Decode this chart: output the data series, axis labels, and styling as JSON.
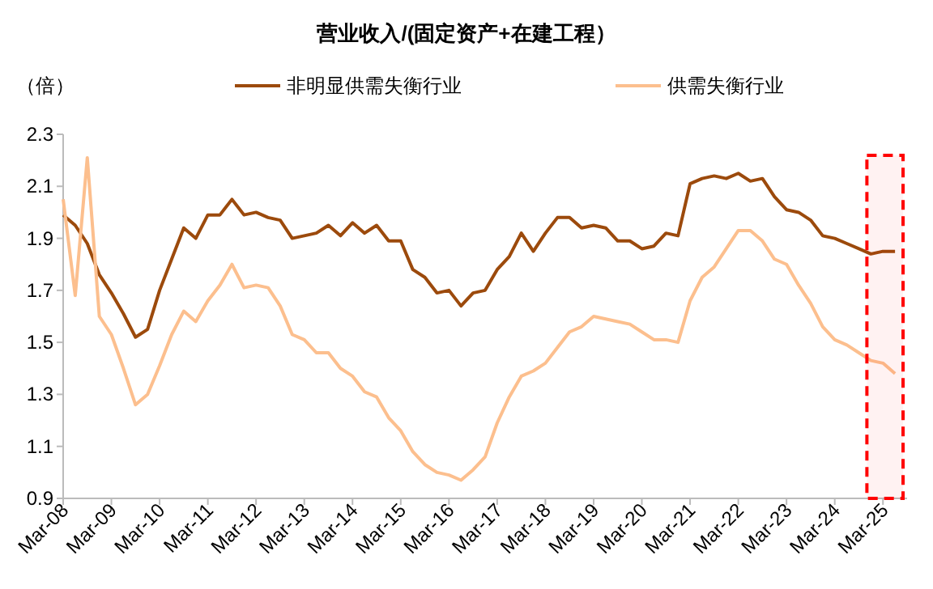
{
  "chart_data": {
    "type": "line",
    "title": "营业收入/(固定资产+在建工程）",
    "ylabel": "（倍）",
    "x": [
      "2008-03",
      "2008-06",
      "2008-09",
      "2008-12",
      "2009-03",
      "2009-06",
      "2009-09",
      "2009-12",
      "2010-03",
      "2010-06",
      "2010-09",
      "2010-12",
      "2011-03",
      "2011-06",
      "2011-09",
      "2011-12",
      "2012-03",
      "2012-06",
      "2012-09",
      "2012-12",
      "2013-03",
      "2013-06",
      "2013-09",
      "2013-12",
      "2014-03",
      "2014-06",
      "2014-09",
      "2014-12",
      "2015-03",
      "2015-06",
      "2015-09",
      "2015-12",
      "2016-03",
      "2016-06",
      "2016-09",
      "2016-12",
      "2017-03",
      "2017-06",
      "2017-09",
      "2017-12",
      "2018-03",
      "2018-06",
      "2018-09",
      "2018-12",
      "2019-03",
      "2019-06",
      "2019-09",
      "2019-12",
      "2020-03",
      "2020-06",
      "2020-09",
      "2020-12",
      "2021-03",
      "2021-06",
      "2021-09",
      "2021-12",
      "2022-03",
      "2022-06",
      "2022-09",
      "2022-12",
      "2023-03",
      "2023-06",
      "2023-09",
      "2023-12",
      "2024-03",
      "2024-06",
      "2024-09",
      "2024-12",
      "2025-03",
      "2025-06"
    ],
    "series": [
      {
        "name": "非明显供需失衡行业",
        "color": "#9c4a0c",
        "values": [
          1.99,
          1.95,
          1.88,
          1.76,
          1.69,
          1.61,
          1.52,
          1.55,
          1.7,
          1.82,
          1.94,
          1.9,
          1.99,
          1.99,
          2.05,
          1.99,
          2.0,
          1.98,
          1.97,
          1.9,
          1.91,
          1.92,
          1.95,
          1.91,
          1.96,
          1.92,
          1.95,
          1.89,
          1.89,
          1.78,
          1.75,
          1.69,
          1.7,
          1.64,
          1.69,
          1.7,
          1.78,
          1.83,
          1.92,
          1.85,
          1.92,
          1.98,
          1.98,
          1.94,
          1.95,
          1.94,
          1.89,
          1.89,
          1.86,
          1.87,
          1.92,
          1.91,
          2.11,
          2.13,
          2.14,
          2.13,
          2.15,
          2.12,
          2.13,
          2.06,
          2.01,
          2.0,
          1.97,
          1.91,
          1.9,
          1.88,
          1.86,
          1.84,
          1.85,
          1.85
        ]
      },
      {
        "name": "供需失衡行业",
        "color": "#fcbf8e",
        "values": [
          2.05,
          1.68,
          2.21,
          1.6,
          1.53,
          1.4,
          1.26,
          1.3,
          1.41,
          1.53,
          1.62,
          1.58,
          1.66,
          1.72,
          1.8,
          1.71,
          1.72,
          1.71,
          1.64,
          1.53,
          1.51,
          1.46,
          1.46,
          1.4,
          1.37,
          1.31,
          1.29,
          1.21,
          1.16,
          1.08,
          1.03,
          1.0,
          0.99,
          0.97,
          1.01,
          1.06,
          1.19,
          1.29,
          1.37,
          1.39,
          1.42,
          1.48,
          1.54,
          1.56,
          1.6,
          1.59,
          1.58,
          1.57,
          1.54,
          1.51,
          1.51,
          1.5,
          1.66,
          1.75,
          1.79,
          1.86,
          1.93,
          1.93,
          1.89,
          1.82,
          1.8,
          1.72,
          1.65,
          1.56,
          1.51,
          1.49,
          1.46,
          1.43,
          1.42,
          1.38
        ]
      }
    ],
    "xlim": [
      "2008-03",
      "2025-09"
    ],
    "xticks": [
      {
        "value": "2008-03",
        "label": "Mar-08"
      },
      {
        "value": "2009-03",
        "label": "Mar-09"
      },
      {
        "value": "2010-03",
        "label": "Mar-10"
      },
      {
        "value": "2011-03",
        "label": "Mar-11"
      },
      {
        "value": "2012-03",
        "label": "Mar-12"
      },
      {
        "value": "2013-03",
        "label": "Mar-13"
      },
      {
        "value": "2014-03",
        "label": "Mar-14"
      },
      {
        "value": "2015-03",
        "label": "Mar-15"
      },
      {
        "value": "2016-03",
        "label": "Mar-16"
      },
      {
        "value": "2017-03",
        "label": "Mar-17"
      },
      {
        "value": "2018-03",
        "label": "Mar-18"
      },
      {
        "value": "2019-03",
        "label": "Mar-19"
      },
      {
        "value": "2020-03",
        "label": "Mar-20"
      },
      {
        "value": "2021-03",
        "label": "Mar-21"
      },
      {
        "value": "2022-03",
        "label": "Mar-22"
      },
      {
        "value": "2023-03",
        "label": "Mar-23"
      },
      {
        "value": "2024-03",
        "label": "Mar-24"
      },
      {
        "value": "2025-03",
        "label": "Mar-25"
      }
    ],
    "ylim": [
      0.9,
      2.3
    ],
    "yticks": [
      {
        "value": 0.9,
        "label": "0.9"
      },
      {
        "value": 1.1,
        "label": "1.1"
      },
      {
        "value": 1.3,
        "label": "1.3"
      },
      {
        "value": 1.5,
        "label": "1.5"
      },
      {
        "value": 1.7,
        "label": "1.7"
      },
      {
        "value": 1.9,
        "label": "1.9"
      },
      {
        "value": 2.1,
        "label": "2.1"
      },
      {
        "value": 2.3,
        "label": "2.3"
      }
    ],
    "bands": [
      {
        "axis": "x",
        "from": "2024-11",
        "to": "2025-08",
        "color": "#ff0000"
      }
    ],
    "grid": false,
    "legend": "top",
    "marker": "none",
    "line_style": "solid"
  }
}
